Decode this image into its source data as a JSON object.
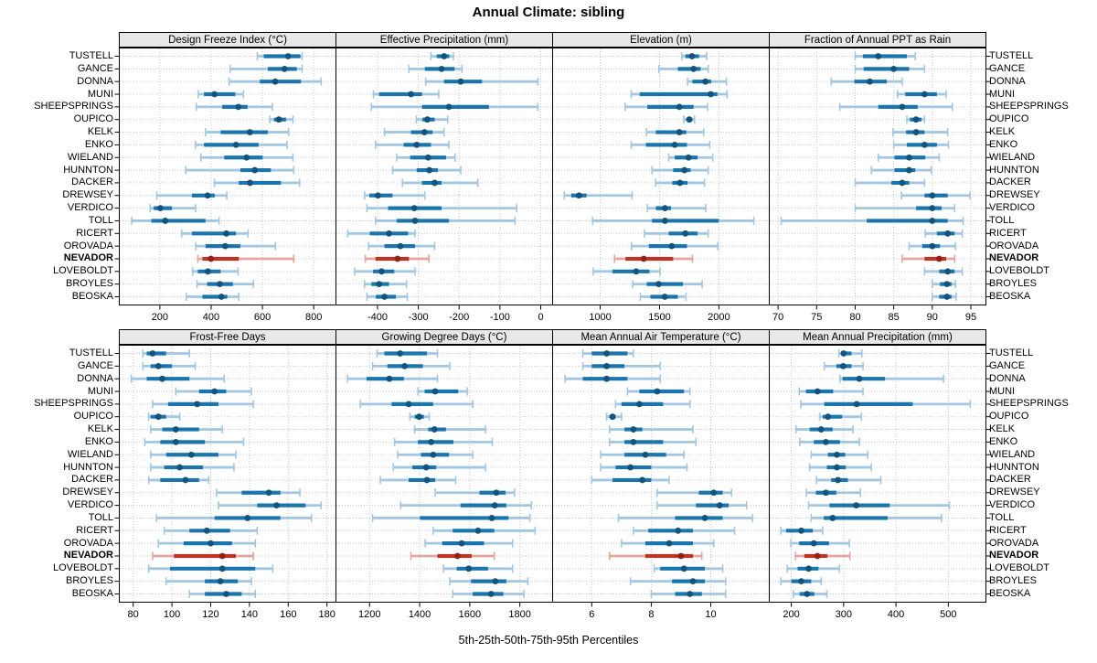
{
  "title": "Annual Climate: sibling",
  "caption": "5th-25th-50th-75th-95th Percentiles",
  "stations": [
    "TUSTELL",
    "GANCE",
    "DONNA",
    "MUNI",
    "SHEEPSPRINGS",
    "OUPICO",
    "KELK",
    "ENKO",
    "WIELAND",
    "HUNNTON",
    "DACKER",
    "DREWSEY",
    "VERDICO",
    "TOLL",
    "RICERT",
    "OROVADA",
    "NEVADOR",
    "LOVEBOLDT",
    "BROYLES",
    "BEOSKA"
  ],
  "highlight_station": "NEVADOR",
  "colors": {
    "series_main": "#1b75ad",
    "series_light": "#a3c7e0",
    "series_dot": "#14537c",
    "highlight_main": "#bb3527",
    "highlight_light": "#e3a59e",
    "highlight_dot": "#8f2317",
    "strip_bg": "#e8e8e8",
    "grid": "#c9c9c9",
    "border": "#000000"
  },
  "chart_data": [
    {
      "type": "interval",
      "row": 0,
      "col": 0,
      "title": "Design Freeze Index (°C)",
      "ticks": [
        200,
        400,
        600,
        800
      ],
      "xlim": [
        40,
        885
      ],
      "percentile_labels": [
        "5th",
        "25th",
        "50th",
        "75th",
        "95th"
      ],
      "values": [
        [
          580,
          605,
          700,
          748,
          755
        ],
        [
          474,
          621,
          686,
          734,
          755
        ],
        [
          470,
          590,
          650,
          750,
          829
        ],
        [
          350,
          372,
          413,
          494,
          526
        ],
        [
          342,
          443,
          506,
          542,
          639
        ],
        [
          629,
          645,
          664,
          692,
          719
        ],
        [
          378,
          437,
          551,
          621,
          702
        ],
        [
          339,
          372,
          497,
          585,
          696
        ],
        [
          360,
          451,
          538,
          601,
          719
        ],
        [
          301,
          514,
          570,
          633,
          722
        ],
        [
          413,
          508,
          552,
          672,
          745
        ],
        [
          188,
          325,
          386,
          414,
          461
        ],
        [
          162,
          176,
          202,
          247,
          339
        ],
        [
          90,
          167,
          221,
          378,
          431
        ],
        [
          285,
          325,
          459,
          497,
          544
        ],
        [
          340,
          378,
          455,
          514,
          651
        ],
        [
          348,
          366,
          399,
          508,
          722
        ],
        [
          328,
          348,
          387,
          437,
          505
        ],
        [
          345,
          384,
          434,
          485,
          565
        ],
        [
          303,
          366,
          440,
          463,
          508
        ]
      ]
    },
    {
      "type": "interval",
      "row": 0,
      "col": 1,
      "title": "Effective Precipitation (mm)",
      "ticks": [
        -400,
        -300,
        -200,
        -100,
        0
      ],
      "xlim": [
        -503,
        28
      ],
      "values": [
        [
          -269,
          -255,
          -237,
          -224,
          -214
        ],
        [
          -323,
          -284,
          -243,
          -211,
          -193
        ],
        [
          -282,
          -237,
          -196,
          -144,
          -7
        ],
        [
          -410,
          -396,
          -318,
          -291,
          -250
        ],
        [
          -415,
          -291,
          -225,
          -127,
          -7
        ],
        [
          -305,
          -290,
          -278,
          -260,
          -228
        ],
        [
          -383,
          -318,
          -285,
          -265,
          -237
        ],
        [
          -405,
          -336,
          -304,
          -269,
          -225
        ],
        [
          -353,
          -320,
          -276,
          -232,
          -210
        ],
        [
          -363,
          -304,
          -273,
          -252,
          -196
        ],
        [
          -339,
          -291,
          -260,
          -243,
          -154
        ],
        [
          -432,
          -420,
          -399,
          -363,
          -284
        ],
        [
          -426,
          -374,
          -310,
          -243,
          -59
        ],
        [
          -405,
          -353,
          -308,
          -225,
          -63
        ],
        [
          -473,
          -419,
          -372,
          -325,
          -308
        ],
        [
          -422,
          -383,
          -344,
          -308,
          -260
        ],
        [
          -430,
          -405,
          -351,
          -323,
          -274
        ],
        [
          -456,
          -411,
          -390,
          -359,
          -308
        ],
        [
          -432,
          -415,
          -396,
          -372,
          -329
        ],
        [
          -426,
          -404,
          -383,
          -355,
          -327
        ]
      ]
    },
    {
      "type": "interval",
      "row": 0,
      "col": 2,
      "title": "Elevation (m)",
      "ticks": [
        1000,
        1500,
        2000
      ],
      "xlim": [
        595,
        2421
      ],
      "values": [
        [
          1687,
          1718,
          1774,
          1833,
          1897
        ],
        [
          1495,
          1654,
          1787,
          1846,
          1910
        ],
        [
          1736,
          1777,
          1887,
          1936,
          2064
        ],
        [
          1262,
          1333,
          1931,
          1987,
          2069
        ],
        [
          1210,
          1397,
          1667,
          1787,
          1905
        ],
        [
          1705,
          1726,
          1751,
          1777,
          1795
        ],
        [
          1390,
          1469,
          1667,
          1726,
          1872
        ],
        [
          1262,
          1385,
          1628,
          1731,
          1923
        ],
        [
          1577,
          1628,
          1744,
          1821,
          1949
        ],
        [
          1436,
          1615,
          1710,
          1762,
          1910
        ],
        [
          1467,
          1608,
          1672,
          1736,
          1879
        ],
        [
          697,
          756,
          821,
          885,
          1269
        ],
        [
          1397,
          1469,
          1546,
          1597,
          1890
        ],
        [
          936,
          1436,
          1546,
          2000,
          2295
        ],
        [
          1372,
          1577,
          1718,
          1821,
          1910
        ],
        [
          1264,
          1410,
          1603,
          1731,
          1992
        ],
        [
          1121,
          1213,
          1367,
          1615,
          1777
        ],
        [
          941,
          1103,
          1303,
          1415,
          1505
        ],
        [
          1274,
          1392,
          1492,
          1697,
          1859
        ],
        [
          1338,
          1423,
          1544,
          1654,
          1723
        ]
      ]
    },
    {
      "type": "interval",
      "row": 0,
      "col": 3,
      "title": "Fraction of Annual PPT as Rain",
      "ticks": [
        70,
        75,
        80,
        85,
        90,
        95
      ],
      "xlim": [
        68.8,
        96.9
      ],
      "values": [
        [
          80.0,
          81.0,
          83.0,
          86.7,
          87.8
        ],
        [
          80.0,
          81.1,
          85.0,
          87.0,
          89.0
        ],
        [
          76.9,
          79.9,
          81.9,
          84.1,
          86.1
        ],
        [
          85.5,
          86.5,
          89.0,
          90.6,
          91.8
        ],
        [
          78.0,
          83.0,
          86.1,
          88.1,
          92.6
        ],
        [
          86.7,
          87.1,
          87.9,
          88.6,
          89.0
        ],
        [
          84.9,
          86.6,
          87.9,
          89.0,
          92.0
        ],
        [
          85.0,
          86.7,
          89.0,
          90.6,
          92.1
        ],
        [
          83.0,
          85.1,
          87.0,
          89.1,
          90.9
        ],
        [
          82.1,
          85.1,
          87.0,
          87.8,
          89.9
        ],
        [
          80.0,
          84.7,
          86.1,
          87.0,
          89.0
        ],
        [
          86.0,
          89.0,
          90.0,
          92.0,
          94.9
        ],
        [
          80.0,
          87.9,
          90.0,
          91.2,
          92.9
        ],
        [
          70.4,
          81.5,
          90.0,
          92.0,
          94.0
        ],
        [
          89.1,
          90.6,
          92.0,
          92.9,
          93.9
        ],
        [
          87.0,
          88.7,
          90.0,
          91.0,
          93.0
        ],
        [
          86.1,
          89.0,
          90.9,
          91.8,
          92.9
        ],
        [
          89.0,
          90.9,
          92.0,
          92.9,
          93.9
        ],
        [
          90.0,
          91.0,
          91.9,
          92.5,
          93.0
        ],
        [
          90.0,
          90.9,
          91.9,
          92.5,
          93.1
        ]
      ]
    },
    {
      "type": "interval",
      "row": 1,
      "col": 0,
      "title": "Frost-Free Days",
      "ticks": [
        80,
        100,
        120,
        140,
        160,
        180
      ],
      "xlim": [
        72.6,
        184.4
      ],
      "values": [
        [
          85,
          87,
          90,
          97,
          109
        ],
        [
          85,
          89,
          93,
          100,
          112
        ],
        [
          79,
          87,
          95,
          109,
          127
        ],
        [
          102,
          114,
          122,
          128,
          141
        ],
        [
          90,
          98,
          113,
          124,
          142
        ],
        [
          88,
          89,
          93,
          97,
          104
        ],
        [
          89,
          95,
          102,
          114,
          126
        ],
        [
          86,
          94,
          102,
          117,
          137
        ],
        [
          89,
          97,
          110,
          124,
          133
        ],
        [
          89,
          96,
          104,
          116,
          132
        ],
        [
          88,
          94,
          107,
          114,
          119
        ],
        [
          123,
          136,
          150,
          156,
          166
        ],
        [
          124,
          144,
          154,
          169,
          177
        ],
        [
          92,
          122,
          139,
          156,
          172
        ],
        [
          96,
          109,
          118,
          130,
          144
        ],
        [
          93,
          106,
          120,
          131,
          143
        ],
        [
          90,
          101,
          126,
          133,
          142
        ],
        [
          88,
          99,
          126,
          143,
          152
        ],
        [
          97,
          117,
          125,
          134,
          141
        ],
        [
          109,
          117,
          128,
          136,
          143
        ]
      ]
    },
    {
      "type": "interval",
      "row": 1,
      "col": 1,
      "title": "Growing Degree Days (°C)",
      "ticks": [
        1200,
        1400,
        1600,
        1800
      ],
      "xlim": [
        1064,
        1929
      ],
      "values": [
        [
          1230,
          1259,
          1322,
          1429,
          1471
        ],
        [
          1212,
          1271,
          1340,
          1413,
          1520
        ],
        [
          1112,
          1188,
          1279,
          1337,
          1471
        ],
        [
          1393,
          1420,
          1462,
          1554,
          1590
        ],
        [
          1163,
          1288,
          1356,
          1454,
          1612
        ],
        [
          1361,
          1380,
          1398,
          1417,
          1438
        ],
        [
          1380,
          1434,
          1459,
          1505,
          1663
        ],
        [
          1300,
          1393,
          1446,
          1535,
          1690
        ],
        [
          1312,
          1405,
          1454,
          1517,
          1612
        ],
        [
          1295,
          1371,
          1426,
          1466,
          1663
        ],
        [
          1243,
          1356,
          1429,
          1462,
          1544
        ],
        [
          1462,
          1639,
          1706,
          1743,
          1779
        ],
        [
          1324,
          1563,
          1700,
          1746,
          1846
        ],
        [
          1212,
          1401,
          1688,
          1755,
          1840
        ],
        [
          1454,
          1532,
          1633,
          1698,
          1861
        ],
        [
          1422,
          1490,
          1568,
          1657,
          1771
        ],
        [
          1365,
          1471,
          1551,
          1608,
          1698
        ],
        [
          1495,
          1548,
          1596,
          1673,
          1771
        ],
        [
          1520,
          1605,
          1702,
          1746,
          1832
        ],
        [
          1532,
          1612,
          1685,
          1734,
          1816
        ]
      ]
    },
    {
      "type": "interval",
      "row": 1,
      "col": 2,
      "title": "Mean Annual Air Temperature (°C)",
      "ticks": [
        6,
        8,
        10
      ],
      "xlim": [
        4.67,
        11.95
      ],
      "values": [
        [
          5.7,
          6.0,
          6.5,
          7.2,
          7.4
        ],
        [
          5.7,
          6.0,
          6.5,
          7.1,
          8.3
        ],
        [
          5.1,
          5.7,
          6.5,
          7.2,
          8.3
        ],
        [
          7.2,
          7.6,
          8.2,
          9.1,
          9.3
        ],
        [
          6.8,
          7.0,
          7.6,
          8.4,
          9.3
        ],
        [
          6.5,
          6.6,
          6.7,
          6.8,
          7.0
        ],
        [
          6.6,
          7.1,
          7.4,
          7.7,
          9.4
        ],
        [
          6.6,
          7.1,
          7.4,
          8.4,
          9.5
        ],
        [
          6.3,
          7.1,
          7.8,
          8.5,
          9.1
        ],
        [
          6.3,
          6.8,
          7.3,
          8.0,
          9.2
        ],
        [
          6.0,
          6.7,
          7.7,
          8.0,
          8.6
        ],
        [
          8.2,
          9.6,
          10.1,
          10.4,
          10.7
        ],
        [
          8.2,
          9.5,
          10.3,
          10.6,
          11.2
        ],
        [
          6.9,
          8.8,
          9.8,
          10.4,
          11.4
        ],
        [
          7.4,
          7.9,
          8.9,
          9.4,
          10.8
        ],
        [
          7.0,
          7.8,
          8.6,
          9.4,
          10.1
        ],
        [
          6.6,
          7.8,
          9.0,
          9.4,
          9.7
        ],
        [
          8.1,
          8.3,
          9.1,
          9.8,
          10.4
        ],
        [
          7.3,
          8.7,
          9.4,
          9.8,
          10.5
        ],
        [
          8.0,
          8.8,
          9.3,
          9.7,
          10.5
        ]
      ]
    },
    {
      "type": "interval",
      "row": 1,
      "col": 3,
      "title": "Mean Annual Precipitation (mm)",
      "ticks": [
        200,
        300,
        400,
        500
      ],
      "xlim": [
        157,
        571
      ],
      "values": [
        [
          291,
          295,
          300,
          315,
          335
        ],
        [
          263,
          286,
          299,
          315,
          337
        ],
        [
          293,
          298,
          330,
          379,
          491
        ],
        [
          215,
          228,
          250,
          280,
          337
        ],
        [
          218,
          263,
          325,
          432,
          542
        ],
        [
          254,
          260,
          270,
          297,
          334
        ],
        [
          209,
          235,
          257,
          279,
          318
        ],
        [
          216,
          243,
          266,
          293,
          330
        ],
        [
          238,
          270,
          287,
          303,
          346
        ],
        [
          235,
          268,
          287,
          304,
          353
        ],
        [
          248,
          276,
          289,
          308,
          371
        ],
        [
          229,
          247,
          266,
          286,
          332
        ],
        [
          233,
          273,
          324,
          388,
          502
        ],
        [
          238,
          262,
          279,
          384,
          487
        ],
        [
          180,
          190,
          219,
          241,
          260
        ],
        [
          199,
          215,
          243,
          272,
          311
        ],
        [
          208,
          225,
          250,
          269,
          312
        ],
        [
          192,
          212,
          233,
          252,
          292
        ],
        [
          180,
          200,
          219,
          238,
          257
        ],
        [
          204,
          216,
          230,
          244,
          268
        ]
      ]
    }
  ]
}
